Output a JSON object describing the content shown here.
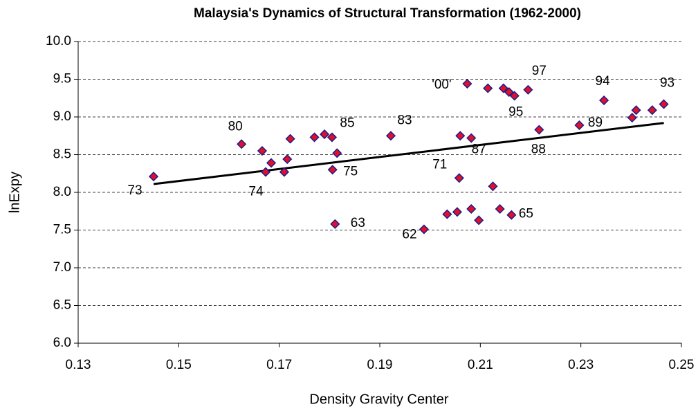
{
  "chart_data": {
    "type": "scatter",
    "title": "Malaysia's Dynamics of Structural Transformation (1962-2000)",
    "xlabel": "Density Gravity Center",
    "ylabel": "lnExpy",
    "x": [
      0.145,
      0.1625,
      0.1666,
      0.1684,
      0.1673,
      0.1716,
      0.171,
      0.1722,
      0.177,
      0.179,
      0.1805,
      0.1815,
      0.1806,
      0.1811,
      0.1922,
      0.1988,
      0.2034,
      0.2054,
      0.2058,
      0.206,
      0.2082,
      0.2082,
      0.2097,
      0.2074,
      0.2115,
      0.2125,
      0.2139,
      0.2146,
      0.2157,
      0.2162,
      0.2168,
      0.2195,
      0.2217,
      0.2297,
      0.2346,
      0.2402,
      0.241,
      0.2442,
      0.2465
    ],
    "values": [
      8.21,
      8.64,
      8.55,
      8.39,
      8.27,
      8.44,
      8.27,
      8.71,
      8.73,
      8.77,
      8.73,
      8.52,
      8.3,
      7.58,
      8.75,
      7.51,
      7.71,
      7.74,
      8.19,
      8.75,
      8.72,
      7.78,
      7.63,
      9.44,
      9.38,
      8.08,
      7.78,
      9.38,
      9.33,
      7.7,
      9.28,
      9.36,
      8.83,
      8.89,
      9.22,
      8.99,
      9.09,
      9.09,
      9.17
    ],
    "point_labels": [
      "73",
      "80",
      null,
      null,
      "74",
      null,
      null,
      null,
      null,
      null,
      "85",
      null,
      "75",
      "63",
      "83",
      "62",
      null,
      null,
      "71",
      null,
      "87",
      null,
      null,
      "'00'",
      null,
      null,
      null,
      null,
      null,
      "65",
      "95",
      "97",
      "88",
      "89",
      "94",
      null,
      null,
      null,
      "93"
    ],
    "marker_fill": "#e0102a",
    "marker_stroke": "#1c1c8a",
    "trendline": {
      "x": [
        0.145,
        0.2465
      ],
      "values": [
        8.11,
        8.92
      ],
      "color": "#000000"
    },
    "xlim": [
      0.13,
      0.25
    ],
    "xticks": [
      0.13,
      0.15,
      0.17,
      0.19,
      0.21,
      0.23,
      0.25
    ],
    "ylim": [
      6,
      10
    ],
    "yticks": [
      {
        "value": 6,
        "label": "6.0"
      },
      {
        "value": 6.5,
        "label": "6.5"
      },
      {
        "value": 7,
        "label": "7.0"
      },
      {
        "value": 7.5,
        "label": "7.5"
      },
      {
        "value": 8,
        "label": "8.0"
      },
      {
        "value": 8.5,
        "label": "8.5"
      },
      {
        "value": 9,
        "label": "9.0"
      },
      {
        "value": 9.5,
        "label": "9.5"
      },
      {
        "value": 10,
        "label": "10.0"
      }
    ],
    "grid": true
  }
}
